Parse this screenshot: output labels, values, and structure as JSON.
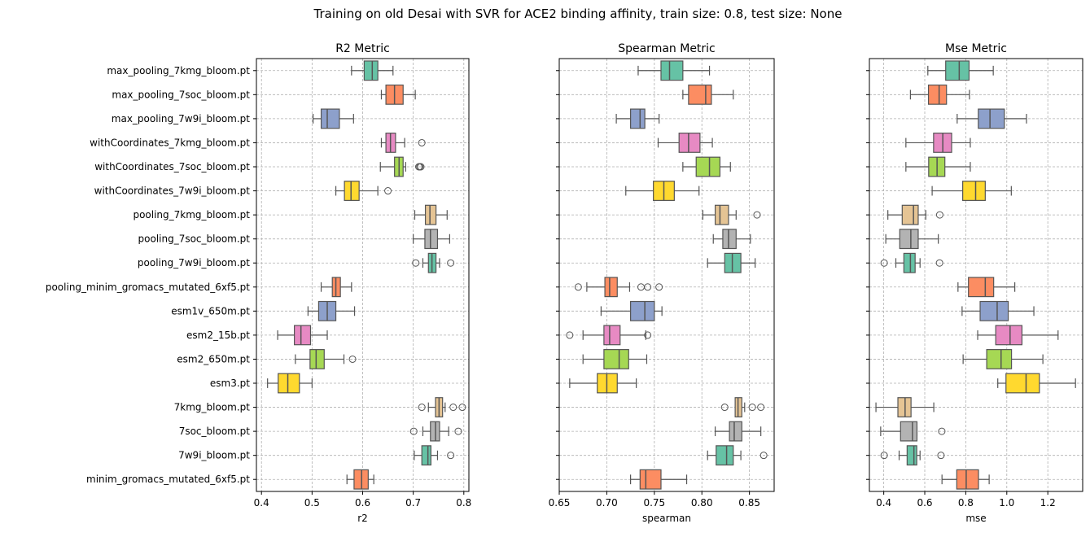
{
  "chart_data": {
    "type": "box",
    "title": "Training on old Desai with SVR for ACE2 binding affinity, train size: 0.8, test size: None",
    "categories": [
      "max_pooling_7kmg_bloom.pt",
      "max_pooling_7soc_bloom.pt",
      "max_pooling_7w9i_bloom.pt",
      "withCoordinates_7kmg_bloom.pt",
      "withCoordinates_7soc_bloom.pt",
      "withCoordinates_7w9i_bloom.pt",
      "pooling_7kmg_bloom.pt",
      "pooling_7soc_bloom.pt",
      "pooling_7w9i_bloom.pt",
      "pooling_minim_gromacs_mutated_6xf5.pt",
      "esm1v_650m.pt",
      "esm2_15b.pt",
      "esm2_650m.pt",
      "esm3.pt",
      "7kmg_bloom.pt",
      "7soc_bloom.pt",
      "7w9i_bloom.pt",
      "minim_gromacs_mutated_6xf5.pt"
    ],
    "colors": [
      "#66c2a5",
      "#fc8d62",
      "#8da0cb",
      "#e78ac3",
      "#a6d854",
      "#ffd92f",
      "#e5c494",
      "#b3b3b3",
      "#66c2a5",
      "#fc8d62",
      "#8da0cb",
      "#e78ac3",
      "#a6d854",
      "#ffd92f",
      "#e5c494",
      "#b3b3b3",
      "#66c2a5",
      "#fc8d62"
    ],
    "grid": true,
    "panels": [
      {
        "title": "R2 Metric",
        "xlabel": "r2",
        "xlim": [
          0.39,
          0.81
        ],
        "ticks": [
          0.4,
          0.5,
          0.6,
          0.7,
          0.8
        ],
        "tick_labels": [
          "0.4",
          "0.5",
          "0.6",
          "0.7",
          "0.8"
        ],
        "boxes": [
          {
            "whislo": 0.578,
            "q1": 0.603,
            "med": 0.619,
            "q3": 0.63,
            "whishi": 0.66,
            "fliers": []
          },
          {
            "whislo": 0.637,
            "q1": 0.646,
            "med": 0.663,
            "q3": 0.68,
            "whishi": 0.704,
            "fliers": []
          },
          {
            "whislo": 0.502,
            "q1": 0.518,
            "med": 0.53,
            "q3": 0.554,
            "whishi": 0.582,
            "fliers": []
          },
          {
            "whislo": 0.637,
            "q1": 0.646,
            "med": 0.655,
            "q3": 0.665,
            "whishi": 0.683,
            "fliers": [
              0.717
            ]
          },
          {
            "whislo": 0.635,
            "q1": 0.663,
            "med": 0.672,
            "q3": 0.68,
            "whishi": 0.685,
            "fliers": [
              0.711,
              0.713,
              0.715
            ]
          },
          {
            "whislo": 0.547,
            "q1": 0.564,
            "med": 0.577,
            "q3": 0.593,
            "whishi": 0.63,
            "fliers": [
              0.65
            ]
          },
          {
            "whislo": 0.703,
            "q1": 0.724,
            "med": 0.733,
            "q3": 0.745,
            "whishi": 0.767,
            "fliers": []
          },
          {
            "whislo": 0.7,
            "q1": 0.723,
            "med": 0.734,
            "q3": 0.748,
            "whishi": 0.772,
            "fliers": []
          },
          {
            "whislo": 0.719,
            "q1": 0.73,
            "med": 0.737,
            "q3": 0.745,
            "whishi": 0.752,
            "fliers": [
              0.705,
              0.774
            ]
          },
          {
            "whislo": 0.518,
            "q1": 0.54,
            "med": 0.547,
            "q3": 0.556,
            "whishi": 0.578,
            "fliers": []
          },
          {
            "whislo": 0.492,
            "q1": 0.513,
            "med": 0.53,
            "q3": 0.547,
            "whishi": 0.584,
            "fliers": []
          },
          {
            "whislo": 0.432,
            "q1": 0.465,
            "med": 0.478,
            "q3": 0.497,
            "whishi": 0.53,
            "fliers": []
          },
          {
            "whislo": 0.467,
            "q1": 0.496,
            "med": 0.508,
            "q3": 0.524,
            "whishi": 0.563,
            "fliers": [
              0.58
            ]
          },
          {
            "whislo": 0.412,
            "q1": 0.433,
            "med": 0.452,
            "q3": 0.475,
            "whishi": 0.5,
            "fliers": []
          },
          {
            "whislo": 0.73,
            "q1": 0.744,
            "med": 0.751,
            "q3": 0.758,
            "whishi": 0.763,
            "fliers": [
              0.717,
              0.779,
              0.797
            ]
          },
          {
            "whislo": 0.719,
            "q1": 0.734,
            "med": 0.744,
            "q3": 0.752,
            "whishi": 0.77,
            "fliers": [
              0.701,
              0.789
            ]
          },
          {
            "whislo": 0.702,
            "q1": 0.717,
            "med": 0.729,
            "q3": 0.735,
            "whishi": 0.748,
            "fliers": [
              0.774
            ]
          },
          {
            "whislo": 0.569,
            "q1": 0.583,
            "med": 0.598,
            "q3": 0.611,
            "whishi": 0.622,
            "fliers": []
          }
        ]
      },
      {
        "title": "Spearman Metric",
        "xlabel": "spearman",
        "xlim": [
          0.65,
          0.876
        ],
        "ticks": [
          0.65,
          0.7,
          0.75,
          0.8,
          0.85
        ],
        "tick_labels": [
          "0.65",
          "0.70",
          "0.75",
          "0.80",
          "0.85"
        ],
        "boxes": [
          {
            "whislo": 0.733,
            "q1": 0.757,
            "med": 0.766,
            "q3": 0.78,
            "whishi": 0.808,
            "fliers": []
          },
          {
            "whislo": 0.78,
            "q1": 0.786,
            "med": 0.804,
            "q3": 0.81,
            "whishi": 0.833,
            "fliers": []
          },
          {
            "whislo": 0.71,
            "q1": 0.725,
            "med": 0.735,
            "q3": 0.74,
            "whishi": 0.755,
            "fliers": []
          },
          {
            "whislo": 0.754,
            "q1": 0.776,
            "med": 0.786,
            "q3": 0.798,
            "whishi": 0.811,
            "fliers": []
          },
          {
            "whislo": 0.78,
            "q1": 0.794,
            "med": 0.808,
            "q3": 0.819,
            "whishi": 0.83,
            "fliers": []
          },
          {
            "whislo": 0.72,
            "q1": 0.749,
            "med": 0.76,
            "q3": 0.771,
            "whishi": 0.797,
            "fliers": []
          },
          {
            "whislo": 0.801,
            "q1": 0.814,
            "med": 0.819,
            "q3": 0.828,
            "whishi": 0.836,
            "fliers": [
              0.858
            ]
          },
          {
            "whislo": 0.812,
            "q1": 0.822,
            "med": 0.828,
            "q3": 0.836,
            "whishi": 0.851,
            "fliers": []
          },
          {
            "whislo": 0.806,
            "q1": 0.824,
            "med": 0.832,
            "q3": 0.841,
            "whishi": 0.856,
            "fliers": []
          },
          {
            "whislo": 0.679,
            "q1": 0.698,
            "med": 0.703,
            "q3": 0.711,
            "whishi": 0.724,
            "fliers": [
              0.67,
              0.736,
              0.743,
              0.755
            ]
          },
          {
            "whislo": 0.694,
            "q1": 0.725,
            "med": 0.74,
            "q3": 0.75,
            "whishi": 0.758,
            "fliers": []
          },
          {
            "whislo": 0.675,
            "q1": 0.697,
            "med": 0.703,
            "q3": 0.714,
            "whishi": 0.741,
            "fliers": [
              0.661,
              0.743
            ]
          },
          {
            "whislo": 0.675,
            "q1": 0.697,
            "med": 0.713,
            "q3": 0.723,
            "whishi": 0.742,
            "fliers": []
          },
          {
            "whislo": 0.661,
            "q1": 0.69,
            "med": 0.7,
            "q3": 0.711,
            "whishi": 0.731,
            "fliers": []
          },
          {
            "whislo": 0.835,
            "q1": 0.835,
            "med": 0.838,
            "q3": 0.842,
            "whishi": 0.845,
            "fliers": [
              0.824,
              0.853,
              0.862
            ]
          },
          {
            "whislo": 0.814,
            "q1": 0.829,
            "med": 0.834,
            "q3": 0.842,
            "whishi": 0.862,
            "fliers": []
          },
          {
            "whislo": 0.806,
            "q1": 0.815,
            "med": 0.826,
            "q3": 0.833,
            "whishi": 0.841,
            "fliers": [
              0.865
            ]
          },
          {
            "whislo": 0.725,
            "q1": 0.735,
            "med": 0.741,
            "q3": 0.757,
            "whishi": 0.784,
            "fliers": []
          }
        ]
      },
      {
        "title": "Mse Metric",
        "xlabel": "mse",
        "xlim": [
          0.33,
          1.37
        ],
        "ticks": [
          0.4,
          0.6,
          0.8,
          1.0,
          1.2
        ],
        "tick_labels": [
          "0.4",
          "0.6",
          "0.8",
          "1.0",
          "1.2"
        ],
        "boxes": [
          {
            "whislo": 0.615,
            "q1": 0.702,
            "med": 0.768,
            "q3": 0.816,
            "whishi": 0.934,
            "fliers": []
          },
          {
            "whislo": 0.53,
            "q1": 0.618,
            "med": 0.67,
            "q3": 0.706,
            "whishi": 0.818,
            "fliers": []
          },
          {
            "whislo": 0.758,
            "q1": 0.861,
            "med": 0.918,
            "q3": 0.988,
            "whishi": 1.096,
            "fliers": []
          },
          {
            "whislo": 0.508,
            "q1": 0.643,
            "med": 0.688,
            "q3": 0.731,
            "whishi": 0.822,
            "fliers": []
          },
          {
            "whislo": 0.508,
            "q1": 0.619,
            "med": 0.66,
            "q3": 0.698,
            "whishi": 0.822,
            "fliers": []
          },
          {
            "whislo": 0.636,
            "q1": 0.785,
            "med": 0.848,
            "q3": 0.895,
            "whishi": 1.022,
            "fliers": []
          },
          {
            "whislo": 0.42,
            "q1": 0.49,
            "med": 0.545,
            "q3": 0.568,
            "whishi": 0.605,
            "fliers": [
              0.673
            ]
          },
          {
            "whislo": 0.41,
            "q1": 0.478,
            "med": 0.532,
            "q3": 0.568,
            "whishi": 0.666,
            "fliers": []
          },
          {
            "whislo": 0.459,
            "q1": 0.498,
            "med": 0.53,
            "q3": 0.553,
            "whishi": 0.577,
            "fliers": [
              0.402,
              0.672
            ]
          },
          {
            "whislo": 0.762,
            "q1": 0.813,
            "med": 0.895,
            "q3": 0.936,
            "whishi": 1.039,
            "fliers": []
          },
          {
            "whislo": 0.782,
            "q1": 0.87,
            "med": 0.953,
            "q3": 1.007,
            "whishi": 1.132,
            "fliers": []
          },
          {
            "whislo": 0.858,
            "q1": 0.946,
            "med": 1.016,
            "q3": 1.074,
            "whishi": 1.25,
            "fliers": []
          },
          {
            "whislo": 0.787,
            "q1": 0.902,
            "med": 0.972,
            "q3": 1.023,
            "whishi": 1.176,
            "fliers": []
          },
          {
            "whislo": 0.956,
            "q1": 0.996,
            "med": 1.094,
            "q3": 1.159,
            "whishi": 1.335,
            "fliers": []
          },
          {
            "whislo": 0.362,
            "q1": 0.469,
            "med": 0.504,
            "q3": 0.533,
            "whishi": 0.644,
            "fliers": []
          },
          {
            "whislo": 0.385,
            "q1": 0.482,
            "med": 0.54,
            "q3": 0.562,
            "whishi": 0.562,
            "fliers": [
              0.683
            ]
          },
          {
            "whislo": 0.475,
            "q1": 0.514,
            "med": 0.547,
            "q3": 0.561,
            "whishi": 0.577,
            "fliers": [
              0.402,
              0.679
            ]
          },
          {
            "whislo": 0.684,
            "q1": 0.756,
            "med": 0.802,
            "q3": 0.862,
            "whishi": 0.914,
            "fliers": []
          }
        ]
      }
    ]
  }
}
